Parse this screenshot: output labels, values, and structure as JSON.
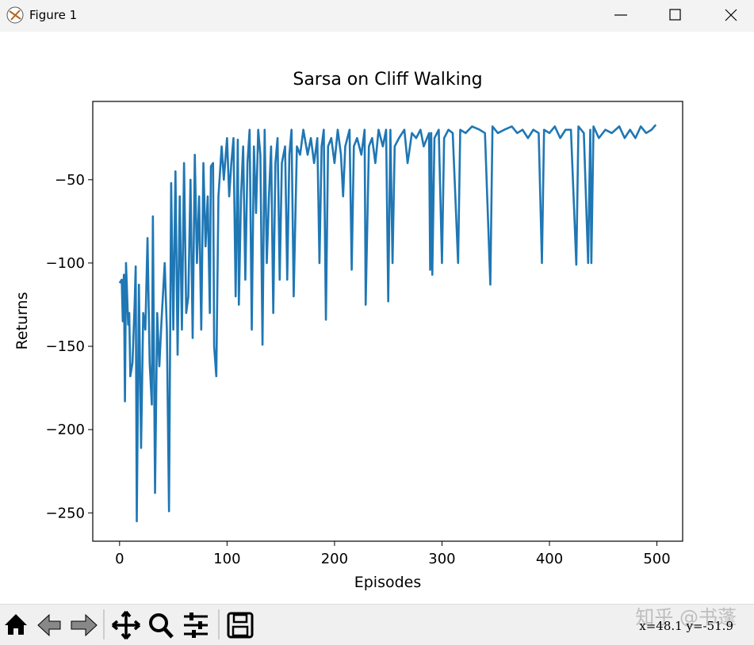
{
  "window": {
    "title": "Figure 1",
    "status": "x=48.1 y=-51.9",
    "watermark": "知乎 @书蓬"
  },
  "chart_data": {
    "type": "line",
    "title": "Sarsa on Cliff Walking",
    "xlabel": "Episodes",
    "ylabel": "Returns",
    "color": "#1f77b4",
    "xlim": [
      -24.95,
      523.95
    ],
    "ylim": [
      -267,
      -3
    ],
    "xticks": [
      0,
      100,
      200,
      300,
      400,
      500
    ],
    "yticks": [
      {
        "value": -250,
        "label": "−250"
      },
      {
        "value": -200,
        "label": "−200"
      },
      {
        "value": -150,
        "label": "−150"
      },
      {
        "value": -100,
        "label": "−100"
      },
      {
        "value": -50,
        "label": "−50"
      }
    ],
    "x": [
      0,
      2,
      3,
      4,
      5,
      6,
      8,
      9,
      10,
      12,
      14,
      15,
      16,
      18,
      20,
      22,
      24,
      26,
      28,
      30,
      31,
      33,
      35,
      37,
      39,
      42,
      44,
      46,
      48,
      50,
      52,
      54,
      56,
      58,
      60,
      62,
      64,
      66,
      68,
      70,
      72,
      74,
      76,
      78,
      80,
      82,
      84,
      85,
      87,
      88,
      90,
      92,
      95,
      97,
      100,
      102,
      104,
      106,
      108,
      110,
      111,
      113,
      115,
      117,
      119,
      121,
      123,
      125,
      127,
      129,
      131,
      133,
      135,
      137,
      139,
      141,
      143,
      145,
      147,
      149,
      151,
      154,
      156,
      158,
      160,
      162,
      165,
      168,
      171,
      175,
      178,
      181,
      184,
      186,
      188,
      190,
      192,
      194,
      197,
      200,
      203,
      206,
      208,
      210,
      214,
      216,
      218,
      221,
      225,
      228,
      229,
      232,
      235,
      238,
      241,
      245,
      248,
      250,
      252,
      254,
      256,
      260,
      265,
      268,
      272,
      276,
      280,
      283,
      288,
      289,
      290,
      291,
      293,
      297,
      300,
      302,
      306,
      310,
      315,
      317,
      322,
      328,
      335,
      340,
      345,
      347,
      352,
      358,
      365,
      370,
      375,
      380,
      385,
      390,
      393,
      395,
      400,
      405,
      410,
      415,
      420,
      425,
      427,
      432,
      436,
      438,
      439,
      441,
      446,
      452,
      458,
      465,
      470,
      475,
      480,
      485,
      490,
      495,
      499
    ],
    "values": [
      -112,
      -110,
      -135,
      -107,
      -183,
      -100,
      -137,
      -130,
      -168,
      -160,
      -125,
      -102,
      -255,
      -113,
      -211,
      -130,
      -140,
      -85,
      -160,
      -185,
      -72,
      -238,
      -130,
      -162,
      -135,
      -100,
      -140,
      -249,
      -52,
      -140,
      -45,
      -155,
      -60,
      -140,
      -40,
      -130,
      -120,
      -50,
      -145,
      -35,
      -100,
      -60,
      -140,
      -40,
      -90,
      -60,
      -130,
      -42,
      -40,
      -150,
      -168,
      -60,
      -30,
      -50,
      -25,
      -60,
      -40,
      -25,
      -120,
      -26,
      -125,
      -60,
      -30,
      -110,
      -40,
      -20,
      -140,
      -30,
      -70,
      -20,
      -35,
      -149,
      -20,
      -100,
      -60,
      -30,
      -130,
      -40,
      -25,
      -110,
      -40,
      -30,
      -110,
      -35,
      -20,
      -120,
      -30,
      -35,
      -20,
      -35,
      -25,
      -40,
      -25,
      -100,
      -30,
      -20,
      -134,
      -30,
      -25,
      -40,
      -20,
      -35,
      -60,
      -30,
      -20,
      -104,
      -30,
      -25,
      -35,
      -20,
      -125,
      -30,
      -25,
      -40,
      -20,
      -30,
      -20,
      -123,
      -20,
      -100,
      -30,
      -25,
      -20,
      -40,
      -22,
      -25,
      -20,
      -30,
      -22,
      -104,
      -22,
      -107,
      -25,
      -20,
      -100,
      -25,
      -20,
      -22,
      -100,
      -20,
      -22,
      -18,
      -20,
      -22,
      -113,
      -18,
      -22,
      -20,
      -18,
      -22,
      -20,
      -25,
      -20,
      -22,
      -100,
      -20,
      -22,
      -18,
      -25,
      -20,
      -20,
      -101,
      -18,
      -22,
      -100,
      -20,
      -100,
      -18,
      -25,
      -20,
      -22,
      -18,
      -25,
      -20,
      -25,
      -18,
      -22,
      -20,
      -17
    ]
  }
}
